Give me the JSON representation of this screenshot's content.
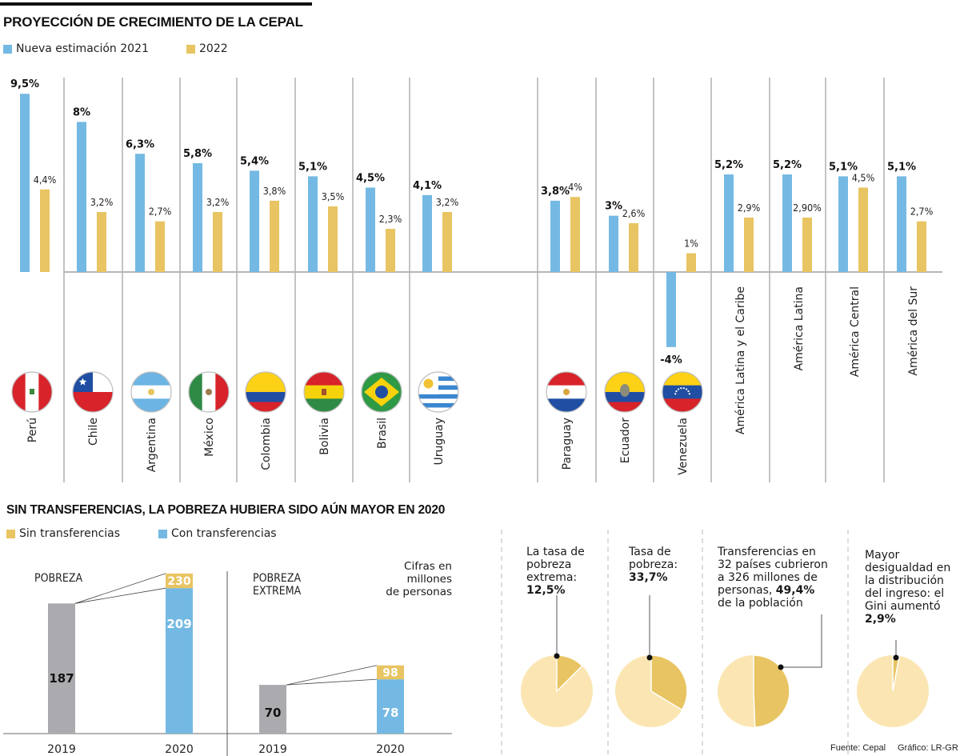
{
  "section1": {
    "title": "PROYECCIÓN DE CRECIMIENTO DE LA CEPAL",
    "legend": [
      {
        "label": "Nueva estimación 2021",
        "color": "#74b9e3"
      },
      {
        "label": "2022",
        "color": "#e8c462"
      }
    ]
  },
  "section2": {
    "title": "SIN TRANSFERENCIAS, LA POBREZA HUBIERA SIDO AÚN MAYOR EN 2020",
    "legend": [
      {
        "label": "Sin transferencias",
        "color": "#e8c462"
      },
      {
        "label": "Con transferencias",
        "color": "#74b9e3"
      }
    ],
    "units_note": [
      "Cifras en",
      "millones",
      "de personas"
    ]
  },
  "chart_data": [
    {
      "type": "bar",
      "title": "PROYECCIÓN DE CRECIMIENTO DE LA CEPAL",
      "categories": [
        "Perú",
        "Chile",
        "Argentina",
        "México",
        "Colombia",
        "Bolivia",
        "Brasil",
        "Uruguay",
        "Paraguay",
        "Ecuador",
        "Venezuela",
        "América Latina y el Caribe",
        "América Latina",
        "América Central",
        "América del Sur"
      ],
      "flags": [
        "peru-flag",
        "chile-flag",
        "argentina-flag",
        "mexico-flag",
        "colombia-flag",
        "bolivia-flag",
        "brasil-flag",
        "uruguay-flag",
        "paraguay-flag",
        "ecuador-flag",
        "venezuela-flag",
        null,
        null,
        null,
        null
      ],
      "series": [
        {
          "name": "Nueva estimación 2021",
          "color": "#74b9e3",
          "values": [
            9.5,
            8,
            6.3,
            5.8,
            5.4,
            5.1,
            4.5,
            4.1,
            3.8,
            3,
            -4,
            5.2,
            5.2,
            5.1,
            5.1
          ],
          "labels": [
            "9,5%",
            "8%",
            "6,3%",
            "5,8%",
            "5,4%",
            "5,1%",
            "4,5%",
            "4,1%",
            "3,8%",
            "3%",
            "-4%",
            "5,2%",
            "5,2%",
            "5,1%",
            "5,1%"
          ]
        },
        {
          "name": "2022",
          "color": "#e8c462",
          "values": [
            4.4,
            3.2,
            2.7,
            3.2,
            3.8,
            3.5,
            2.3,
            3.2,
            4,
            2.6,
            1,
            2.9,
            2.9,
            4.5,
            2.7
          ],
          "labels": [
            "4,4%",
            "3,2%",
            "2,7%",
            "3,2%",
            "3,8%",
            "3,5%",
            "2,3%",
            "3,2%",
            "4%",
            "2,6%",
            "1%",
            "2,9%",
            "2,90%",
            "4,5%",
            "2,7%"
          ]
        }
      ],
      "xlabel": "",
      "ylabel": "",
      "ylim": [
        -4,
        9.5
      ],
      "grid": false,
      "legend": "top-left"
    },
    {
      "type": "bar",
      "title": "POBREZA",
      "categories": [
        "2019",
        "2020"
      ],
      "series": [
        {
          "name": "2019",
          "color": "#ababaf",
          "values": [
            187,
            null
          ]
        },
        {
          "name": "Con transferencias",
          "color": "#74b9e3",
          "values": [
            null,
            209
          ]
        },
        {
          "name": "Sin transferencias",
          "color": "#e8c462",
          "values": [
            null,
            230
          ]
        }
      ],
      "ylabel": "millones de personas"
    },
    {
      "type": "bar",
      "title": "POBREZA EXTREMA",
      "categories": [
        "2019",
        "2020"
      ],
      "series": [
        {
          "name": "2019",
          "color": "#ababaf",
          "values": [
            70,
            null
          ]
        },
        {
          "name": "Con transferencias",
          "color": "#74b9e3",
          "values": [
            null,
            78
          ]
        },
        {
          "name": "Sin transferencias",
          "color": "#e8c462",
          "values": [
            null,
            98
          ]
        }
      ],
      "ylabel": "millones de personas"
    },
    {
      "type": "pie",
      "title": "La tasa de pobreza extrema",
      "text": [
        "La tasa de",
        "pobreza",
        "extrema:"
      ],
      "value_label": "12,5%",
      "values": [
        12.5,
        87.5
      ]
    },
    {
      "type": "pie",
      "title": "Tasa de pobreza",
      "text": [
        "Tasa de",
        "pobreza:"
      ],
      "value_label": "33,7%",
      "values": [
        33.7,
        66.3
      ]
    },
    {
      "type": "pie",
      "title": "Transferencias",
      "text": [
        "Transferencias en",
        "32 países cubrieron",
        "a 326 millones de",
        "personas,",
        "de la población"
      ],
      "value_label": "49,4%",
      "values": [
        49.4,
        50.6
      ]
    },
    {
      "type": "pie",
      "title": "Gini",
      "text": [
        "Mayor",
        "desigualdad en",
        "la distribución",
        "del ingreso: el",
        "Gini aumentó"
      ],
      "value_label": "2,9%",
      "values": [
        2.9,
        97.1
      ]
    }
  ],
  "footer": {
    "source": "Fuente: Cepal",
    "credit": "Gráfico: LR-GR"
  }
}
